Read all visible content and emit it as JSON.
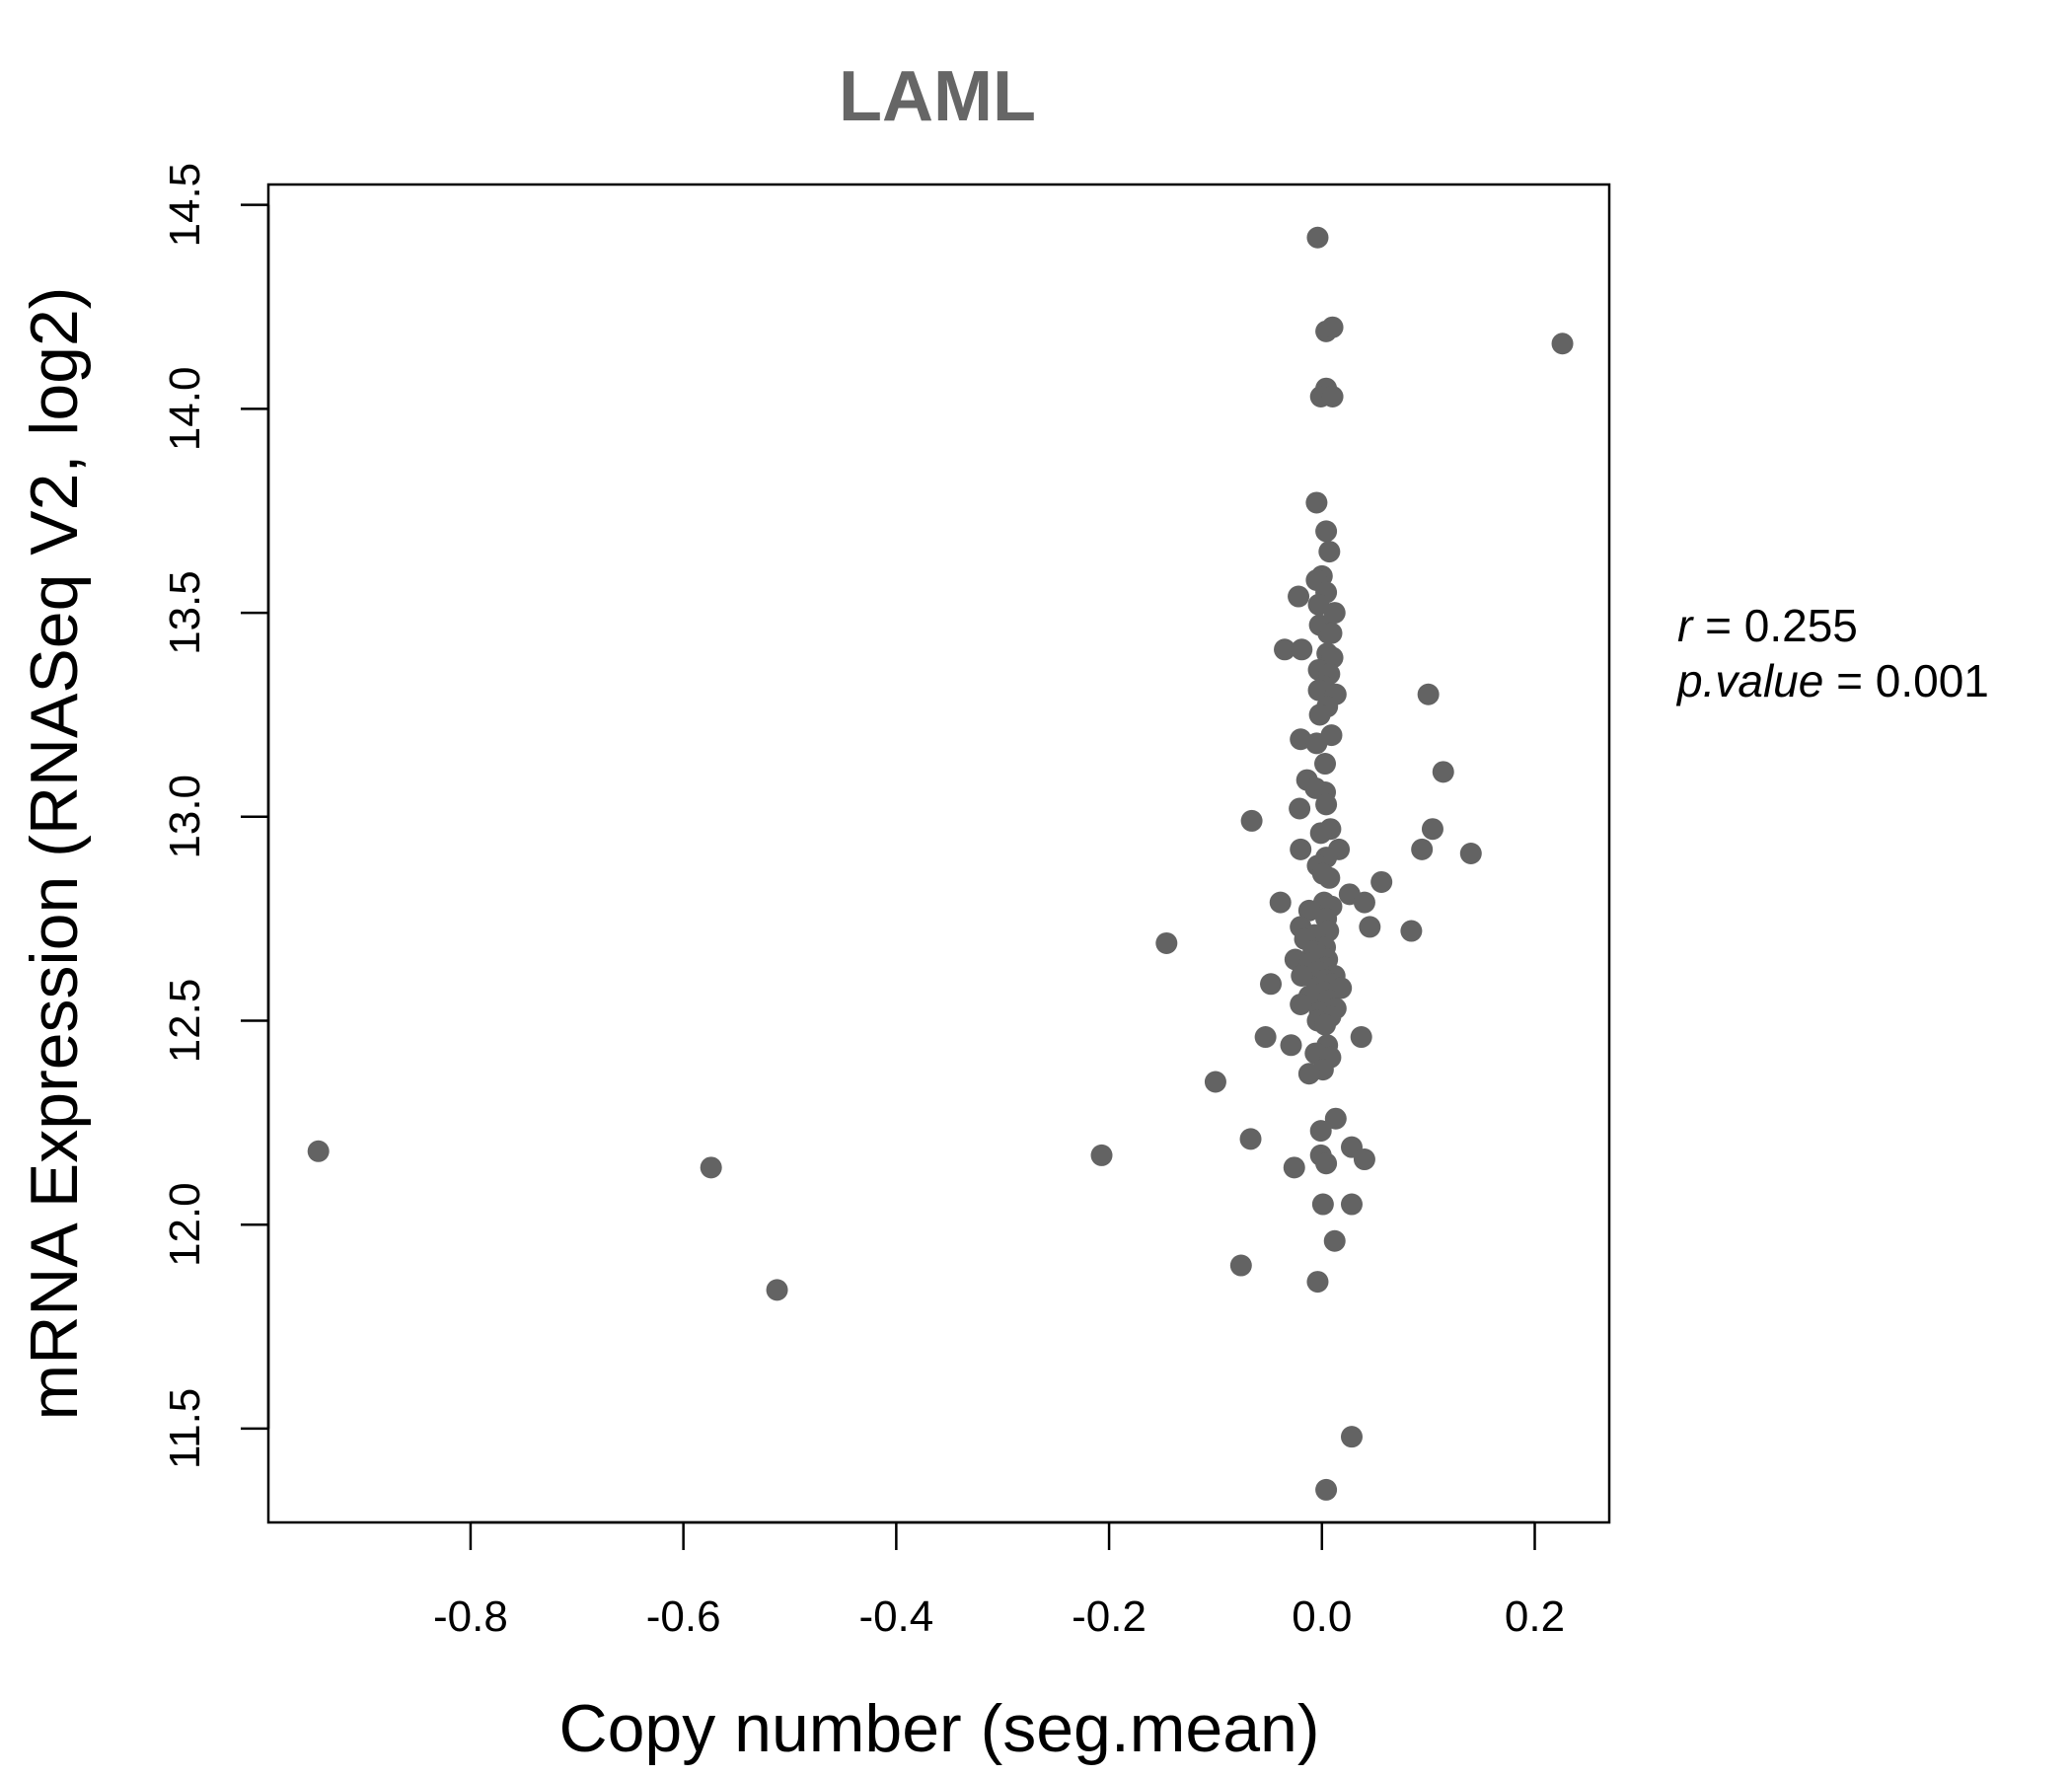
{
  "chart_data": {
    "type": "scatter",
    "title": "LAML",
    "xlabel": "Copy number (seg.mean)",
    "ylabel": "mRNA Expression (RNASeq V2, log2)",
    "xlim": [
      -0.99,
      0.27
    ],
    "ylim": [
      11.27,
      14.55
    ],
    "x_ticks": [
      -0.8,
      -0.6,
      -0.4,
      -0.2,
      0.0,
      0.2
    ],
    "x_tick_labels": [
      "-0.8",
      "-0.6",
      "-0.4",
      "-0.2",
      "0.0",
      "0.2"
    ],
    "y_ticks": [
      11.5,
      12.0,
      12.5,
      13.0,
      13.5,
      14.0,
      14.5
    ],
    "y_tick_labels": [
      "11.5",
      "12.0",
      "12.5",
      "13.0",
      "13.5",
      "14.0",
      "14.5"
    ],
    "point_color": "#636363",
    "stats": {
      "r_label": "r",
      "r_value": "0.255",
      "p_label": "p.value",
      "p_value": "0.001"
    },
    "points": [
      [
        -0.004,
        14.42
      ],
      [
        0.004,
        14.19
      ],
      [
        0.01,
        14.2
      ],
      [
        0.226,
        14.16
      ],
      [
        0.004,
        14.05
      ],
      [
        -0.001,
        14.03
      ],
      [
        0.01,
        14.03
      ],
      [
        -0.005,
        13.77
      ],
      [
        0.004,
        13.7
      ],
      [
        0.007,
        13.65
      ],
      [
        0.0,
        13.59
      ],
      [
        -0.005,
        13.58
      ],
      [
        0.004,
        13.55
      ],
      [
        -0.022,
        13.54
      ],
      [
        -0.003,
        13.52
      ],
      [
        0.012,
        13.5
      ],
      [
        -0.002,
        13.47
      ],
      [
        0.006,
        13.45
      ],
      [
        0.009,
        13.45
      ],
      [
        -0.035,
        13.41
      ],
      [
        -0.019,
        13.41
      ],
      [
        0.005,
        13.4
      ],
      [
        0.01,
        13.39
      ],
      [
        -0.003,
        13.36
      ],
      [
        0.007,
        13.35
      ],
      [
        0.002,
        13.32
      ],
      [
        -0.003,
        13.31
      ],
      [
        0.013,
        13.3
      ],
      [
        0.1,
        13.3
      ],
      [
        0.005,
        13.27
      ],
      [
        -0.002,
        13.25
      ],
      [
        0.009,
        13.2
      ],
      [
        -0.02,
        13.19
      ],
      [
        -0.005,
        13.18
      ],
      [
        0.003,
        13.13
      ],
      [
        0.114,
        13.11
      ],
      [
        -0.014,
        13.09
      ],
      [
        -0.006,
        13.07
      ],
      [
        0.003,
        13.06
      ],
      [
        0.004,
        13.03
      ],
      [
        -0.021,
        13.02
      ],
      [
        -0.066,
        12.99
      ],
      [
        0.104,
        12.97
      ],
      [
        0.008,
        12.97
      ],
      [
        -0.001,
        12.96
      ],
      [
        0.016,
        12.92
      ],
      [
        -0.02,
        12.92
      ],
      [
        0.094,
        12.92
      ],
      [
        0.14,
        12.91
      ],
      [
        0.004,
        12.9
      ],
      [
        -0.004,
        12.88
      ],
      [
        0.001,
        12.86
      ],
      [
        0.007,
        12.85
      ],
      [
        0.056,
        12.84
      ],
      [
        0.026,
        12.81
      ],
      [
        0.04,
        12.79
      ],
      [
        -0.039,
        12.79
      ],
      [
        0.002,
        12.79
      ],
      [
        0.009,
        12.78
      ],
      [
        -0.012,
        12.77
      ],
      [
        0.004,
        12.75
      ],
      [
        0.045,
        12.73
      ],
      [
        -0.02,
        12.73
      ],
      [
        0.084,
        12.72
      ],
      [
        0.006,
        12.72
      ],
      [
        -0.007,
        12.71
      ],
      [
        -0.016,
        12.7
      ],
      [
        -0.146,
        12.69
      ],
      [
        0.003,
        12.68
      ],
      [
        -0.008,
        12.67
      ],
      [
        -0.002,
        12.66
      ],
      [
        0.005,
        12.65
      ],
      [
        -0.025,
        12.65
      ],
      [
        -0.011,
        12.64
      ],
      [
        0.003,
        12.63
      ],
      [
        -0.004,
        12.62
      ],
      [
        0.012,
        12.61
      ],
      [
        -0.019,
        12.61
      ],
      [
        0.003,
        12.6
      ],
      [
        -0.048,
        12.59
      ],
      [
        0.009,
        12.59
      ],
      [
        -0.005,
        12.58
      ],
      [
        0.018,
        12.58
      ],
      [
        0.002,
        12.57
      ],
      [
        -0.012,
        12.56
      ],
      [
        0.006,
        12.55
      ],
      [
        -0.02,
        12.54
      ],
      [
        0.013,
        12.53
      ],
      [
        -0.002,
        12.52
      ],
      [
        0.008,
        12.51
      ],
      [
        -0.004,
        12.5
      ],
      [
        0.003,
        12.49
      ],
      [
        -0.053,
        12.46
      ],
      [
        0.037,
        12.46
      ],
      [
        -0.029,
        12.44
      ],
      [
        0.005,
        12.44
      ],
      [
        -0.006,
        12.42
      ],
      [
        0.008,
        12.41
      ],
      [
        0.001,
        12.38
      ],
      [
        -0.012,
        12.37
      ],
      [
        -0.1,
        12.35
      ],
      [
        0.013,
        12.26
      ],
      [
        -0.001,
        12.23
      ],
      [
        -0.067,
        12.21
      ],
      [
        0.028,
        12.19
      ],
      [
        -0.943,
        12.18
      ],
      [
        -0.001,
        12.17
      ],
      [
        -0.207,
        12.17
      ],
      [
        0.04,
        12.16
      ],
      [
        0.004,
        12.15
      ],
      [
        -0.574,
        12.14
      ],
      [
        -0.026,
        12.14
      ],
      [
        0.001,
        12.05
      ],
      [
        0.028,
        12.05
      ],
      [
        0.012,
        11.96
      ],
      [
        -0.076,
        11.9
      ],
      [
        -0.004,
        11.86
      ],
      [
        -0.512,
        11.84
      ],
      [
        0.028,
        11.48
      ],
      [
        0.004,
        11.35
      ]
    ]
  }
}
